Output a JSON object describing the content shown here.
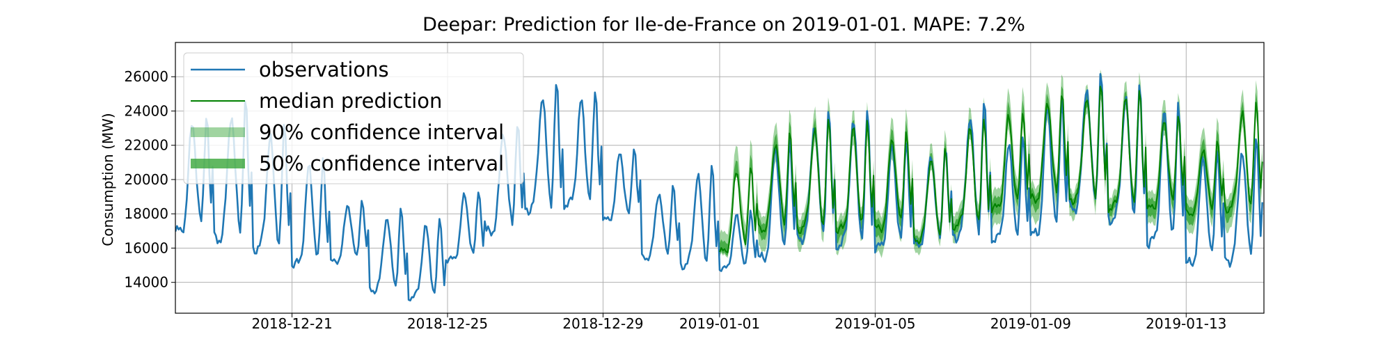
{
  "chart_data": {
    "type": "line",
    "title": "Deepar: Prediction for Ile-de-France on 2019-01-01. MAPE: 7.2%",
    "xlabel": "",
    "ylabel": "Consumption (MW)",
    "x_range": [
      "2018-12-18 00:00",
      "2019-01-15 00:00"
    ],
    "ylim": [
      12200,
      28000
    ],
    "grid": true,
    "legend_position": "top-left",
    "x_ticks": [
      "2018-12-21",
      "2018-12-25",
      "2018-12-29",
      "2019-01-01",
      "2019-01-05",
      "2019-01-09",
      "2019-01-13"
    ],
    "y_ticks": [
      14000,
      16000,
      18000,
      20000,
      22000,
      24000,
      26000
    ],
    "forecast_start": "2019-01-01 00:00",
    "series": [
      {
        "name": "observations",
        "color": "#1f77b4",
        "x": [
          "2018-12-18",
          "2018-12-19",
          "2018-12-20",
          "2018-12-21",
          "2018-12-22",
          "2018-12-23",
          "2018-12-24",
          "2018-12-25",
          "2018-12-26",
          "2018-12-27",
          "2018-12-28",
          "2018-12-29",
          "2018-12-30",
          "2018-12-31",
          "2019-01-01",
          "2019-01-02",
          "2019-01-03",
          "2019-01-04",
          "2019-01-05",
          "2019-01-06",
          "2019-01-07",
          "2019-01-08",
          "2019-01-09",
          "2019-01-10",
          "2019-01-11",
          "2019-01-12",
          "2019-01-13",
          "2019-01-14"
        ],
        "y_min": [
          16600,
          16100,
          15600,
          14700,
          15000,
          13300,
          12900,
          15100,
          16600,
          17900,
          18200,
          17400,
          15200,
          14700,
          14600,
          15000,
          16200,
          15800,
          15700,
          15900,
          16300,
          16200,
          16300,
          17900,
          17300,
          15900,
          14700,
          14900
        ],
        "y_max": [
          24000,
          24700,
          23200,
          21300,
          18900,
          18300,
          17700,
          19500,
          23500,
          25600,
          25200,
          22000,
          19700,
          20800,
          18200,
          22600,
          24000,
          24000,
          22500,
          22100,
          24500,
          22500,
          25000,
          26300,
          25500,
          24500,
          22000,
          22500
        ]
      },
      {
        "name": "median prediction",
        "color": "#008000",
        "x": [
          "2019-01-01",
          "2019-01-02",
          "2019-01-03",
          "2019-01-04",
          "2019-01-05",
          "2019-01-06",
          "2019-01-07",
          "2019-01-08",
          "2019-01-09",
          "2019-01-10",
          "2019-01-11",
          "2019-01-12",
          "2019-01-13",
          "2019-01-14"
        ],
        "y_min": [
          15500,
          16800,
          16800,
          16700,
          16800,
          16200,
          17000,
          18000,
          18500,
          18500,
          18000,
          18000,
          17800,
          18000
        ],
        "y_max": [
          21000,
          22800,
          23500,
          23500,
          23000,
          21800,
          23500,
          24200,
          25300,
          25500,
          25300,
          24000,
          22300,
          24500
        ]
      },
      {
        "name": "90% confidence interval",
        "color": "#2ca02c",
        "x": [
          "2019-01-01",
          "2019-01-02",
          "2019-01-03",
          "2019-01-04",
          "2019-01-05",
          "2019-01-06",
          "2019-01-07",
          "2019-01-08",
          "2019-01-09",
          "2019-01-10",
          "2019-01-11",
          "2019-01-12",
          "2019-01-13",
          "2019-01-14"
        ],
        "lower": [
          15200,
          15600,
          15700,
          15400,
          15300,
          15500,
          16200,
          16900,
          17200,
          17500,
          17200,
          17000,
          16700,
          16800
        ],
        "upper": [
          22700,
          24200,
          24800,
          24600,
          24400,
          22900,
          24800,
          25800,
          26600,
          26500,
          26400,
          25400,
          23700,
          25800
        ]
      },
      {
        "name": "50% confidence interval",
        "color": "#2ca02c",
        "x": [
          "2019-01-01",
          "2019-01-02",
          "2019-01-03",
          "2019-01-04",
          "2019-01-05",
          "2019-01-06",
          "2019-01-07",
          "2019-01-08",
          "2019-01-09",
          "2019-01-10",
          "2019-01-11",
          "2019-01-12",
          "2019-01-13",
          "2019-01-14"
        ],
        "lower": [
          15300,
          16300,
          16300,
          16100,
          16200,
          15900,
          16600,
          17500,
          17900,
          18000,
          17600,
          17400,
          17200,
          17400
        ],
        "upper": [
          21800,
          23500,
          24100,
          24000,
          23700,
          22300,
          24100,
          25000,
          25900,
          26000,
          25800,
          24700,
          23000,
          25100
        ]
      }
    ]
  }
}
